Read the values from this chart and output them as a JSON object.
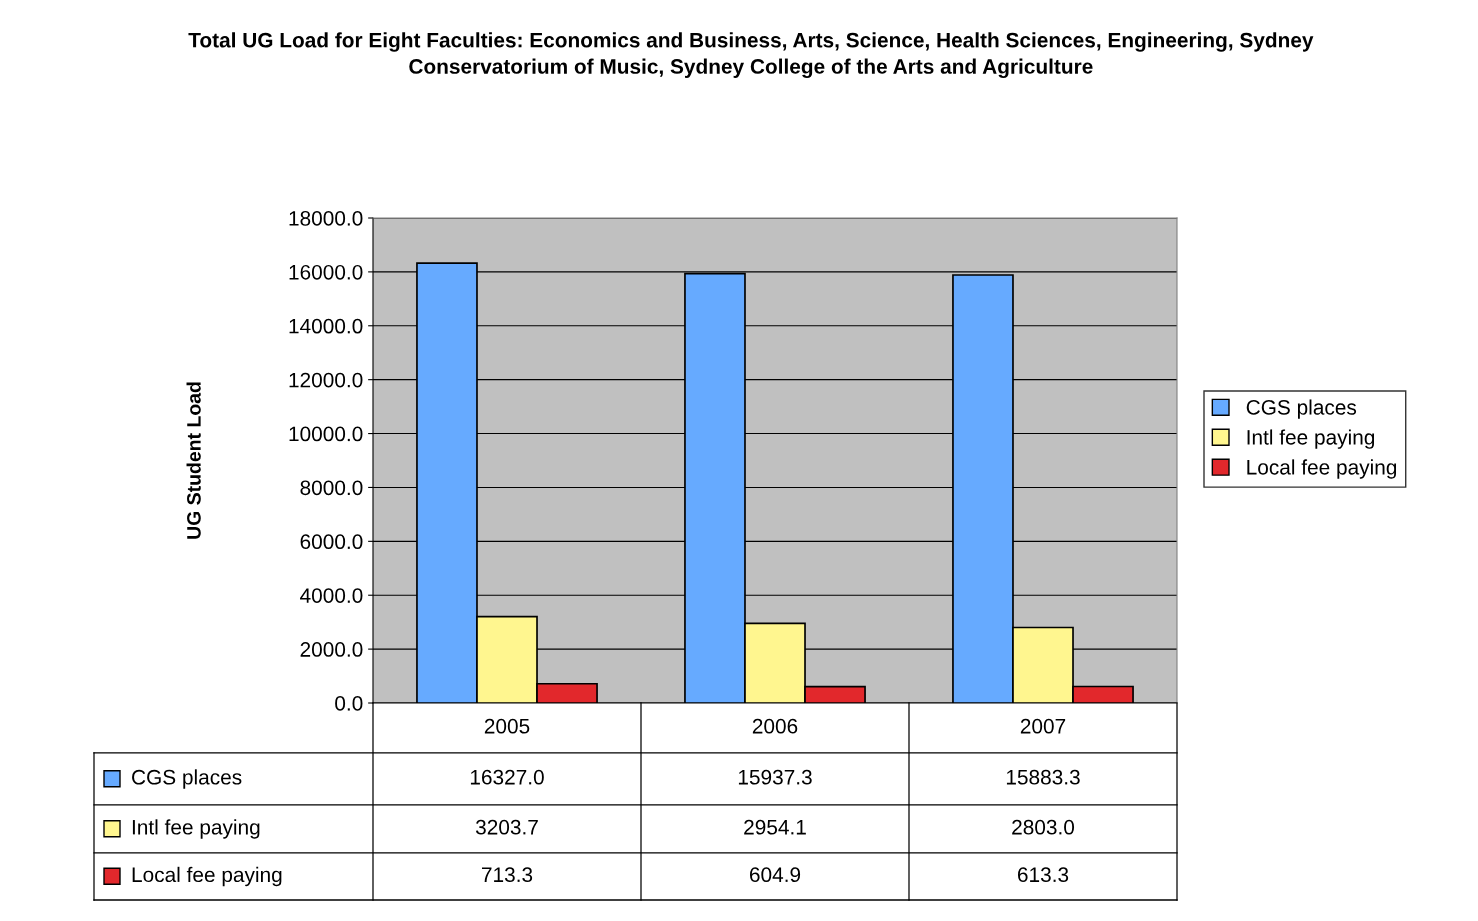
{
  "chart_data": {
    "type": "bar",
    "title": "Total UG Load for Eight Faculties: Economics and Business, Arts, Science, Health Sciences, Engineering, Sydney Conservatorium of Music, Sydney College of the Arts and Agriculture",
    "ylabel": "UG Student Load",
    "categories": [
      "2005",
      "2006",
      "2007"
    ],
    "series": [
      {
        "name": "CGS places",
        "color": "#66aaff",
        "values": [
          16327.0,
          15937.3,
          15883.3
        ],
        "value_labels": [
          "16327.0",
          "15937.3",
          "15883.3"
        ]
      },
      {
        "name": "Intl fee paying",
        "color": "#fff68f",
        "values": [
          3203.7,
          2954.1,
          2803.0
        ],
        "value_labels": [
          "3203.7",
          "2954.1",
          "2803.0"
        ]
      },
      {
        "name": "Local fee paying",
        "color": "#e2282c",
        "values": [
          713.3,
          604.9,
          613.3
        ],
        "value_labels": [
          "713.3",
          "604.9",
          "613.3"
        ]
      }
    ],
    "ylim": [
      0,
      18000
    ],
    "yticks": [
      {
        "value": 0,
        "label": "0.0"
      },
      {
        "value": 2000,
        "label": "2000.0"
      },
      {
        "value": 4000,
        "label": "4000.0"
      },
      {
        "value": 6000,
        "label": "6000.0"
      },
      {
        "value": 8000,
        "label": "8000.0"
      },
      {
        "value": 10000,
        "label": "10000.0"
      },
      {
        "value": 12000,
        "label": "12000.0"
      },
      {
        "value": 14000,
        "label": "14000.0"
      },
      {
        "value": 16000,
        "label": "16000.0"
      },
      {
        "value": 18000,
        "label": "18000.0"
      }
    ],
    "grid": "y",
    "legend": "right"
  }
}
